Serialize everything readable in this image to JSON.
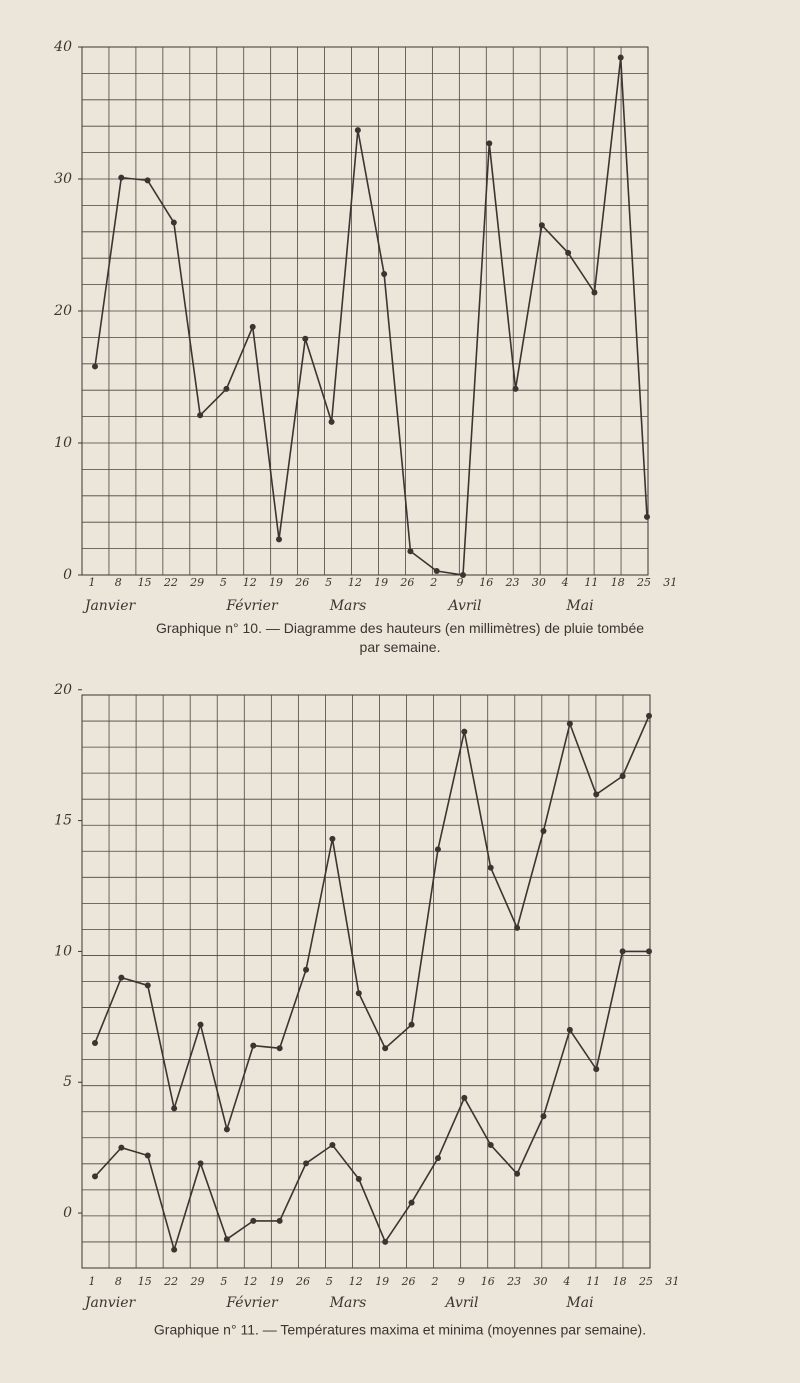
{
  "chart_data": [
    {
      "type": "line",
      "caption": "Graphique n° 10. — Diagramme des hauteurs (en millimètres) de pluie tombée par semaine.",
      "categories": [
        "1",
        "8",
        "15",
        "22",
        "29",
        "5",
        "12",
        "19",
        "26",
        "5",
        "12",
        "19",
        "26",
        "2",
        "9",
        "16",
        "23",
        "30",
        "4",
        "11",
        "18",
        "25",
        "31"
      ],
      "months": [
        "Janvier",
        "Février",
        "Mars",
        "Avril",
        "Mai"
      ],
      "values": [
        15.8,
        30.1,
        29.9,
        26.7,
        12.1,
        14.1,
        18.8,
        2.7,
        17.9,
        11.6,
        33.7,
        22.8,
        1.8,
        0.3,
        0,
        32.7,
        14.1,
        26.5,
        24.4,
        21.4,
        39.2,
        4.4,
        null
      ],
      "color": "#3a3530",
      "ylim": [
        0,
        40
      ],
      "yticks": [
        0,
        10,
        20,
        30,
        40
      ],
      "grid": true
    },
    {
      "type": "line",
      "caption": "Graphique n° 11. — Températures maxima et minima (moyennes par semaine).",
      "categories": [
        "1",
        "8",
        "15",
        "22",
        "29",
        "5",
        "12",
        "19",
        "26",
        "5",
        "12",
        "19",
        "26",
        "2",
        "9",
        "16",
        "23",
        "30",
        "4",
        "11",
        "18",
        "25",
        "31"
      ],
      "months": [
        "Janvier",
        "Février",
        "Mars",
        "Avril",
        "Mai"
      ],
      "series": [
        {
          "color": "#3a3530",
          "values": [
            6.5,
            9.0,
            8.7,
            4.0,
            7.2,
            3.2,
            6.4,
            6.3,
            9.3,
            14.3,
            8.4,
            6.3,
            7.2,
            13.9,
            18.4,
            13.2,
            10.9,
            14.6,
            18.7,
            16.0,
            16.7,
            19.0,
            null
          ]
        },
        {
          "color": "#3a3530",
          "values": [
            1.4,
            2.5,
            2.2,
            -1.4,
            1.9,
            -1.0,
            -0.3,
            -0.3,
            1.9,
            2.6,
            1.3,
            -1.1,
            0.4,
            2.1,
            4.4,
            2.6,
            1.5,
            3.7,
            7.0,
            5.5,
            10.0,
            10.0,
            null
          ]
        }
      ],
      "ylim": [
        -2.1,
        19.8
      ],
      "yticks": [
        0,
        5,
        10,
        15,
        20
      ],
      "grid": true
    }
  ]
}
